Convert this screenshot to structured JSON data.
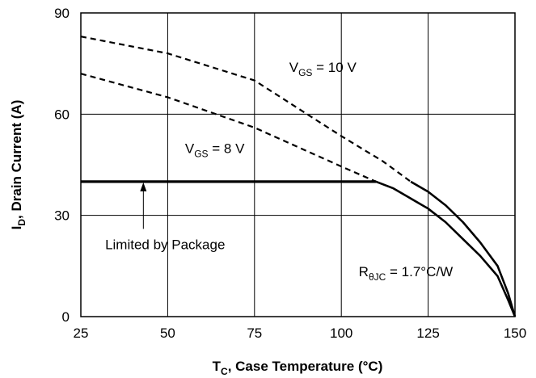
{
  "chart_data": {
    "type": "line",
    "xlabel": {
      "main": "T",
      "sub": "C",
      "rest": ", Case Temperature (°C)"
    },
    "ylabel": {
      "main": "I",
      "sub": "D",
      "rest": ", Drain Current (A)"
    },
    "xlim": [
      25,
      150
    ],
    "ylim": [
      0,
      90
    ],
    "xticks": [
      25,
      50,
      75,
      100,
      125,
      150
    ],
    "yticks": [
      0,
      30,
      60,
      90
    ],
    "grid": true,
    "series": [
      {
        "name": "V_GS = 10 V",
        "style": "dashed",
        "points": [
          [
            25,
            83
          ],
          [
            50,
            78
          ],
          [
            75,
            70
          ],
          [
            100,
            53.5
          ],
          [
            112,
            46
          ],
          [
            120,
            40
          ]
        ]
      },
      {
        "name": "V_GS = 8 V",
        "style": "dashed",
        "points": [
          [
            25,
            72
          ],
          [
            50,
            65
          ],
          [
            75,
            56
          ],
          [
            100,
            44.5
          ],
          [
            110,
            40
          ]
        ]
      },
      {
        "name": "V_GS = 10 V",
        "style": "solid",
        "points": [
          [
            120,
            40
          ],
          [
            125,
            37
          ],
          [
            130,
            33
          ],
          [
            135,
            28
          ],
          [
            140,
            22
          ],
          [
            145,
            15
          ],
          [
            148,
            7
          ],
          [
            150,
            0
          ]
        ]
      },
      {
        "name": "V_GS = 8 V",
        "style": "solid",
        "points": [
          [
            110,
            40
          ],
          [
            115,
            38
          ],
          [
            120,
            35
          ],
          [
            125,
            32
          ],
          [
            130,
            28
          ],
          [
            135,
            23
          ],
          [
            140,
            18
          ],
          [
            145,
            12
          ],
          [
            148,
            5
          ],
          [
            150,
            0
          ]
        ]
      },
      {
        "name": "Limited by Package",
        "style": "solid-bold",
        "points": [
          [
            25,
            40
          ],
          [
            110,
            40
          ]
        ]
      }
    ],
    "annotations": [
      {
        "main": "V",
        "sub": "GS",
        "rest": " = 10 V",
        "x": 85,
        "y": 72.5
      },
      {
        "main": "V",
        "sub": "GS",
        "rest": " = 8 V",
        "x": 55,
        "y": 48.5
      },
      {
        "main": "Limited by Package",
        "x": 32,
        "y": 20
      },
      {
        "main": "R",
        "sub": "θJC",
        "rest": " = 1.7°C/W",
        "x": 105,
        "y": 12
      }
    ],
    "arrow": {
      "from": [
        43,
        26
      ],
      "to": [
        43,
        40
      ]
    }
  }
}
